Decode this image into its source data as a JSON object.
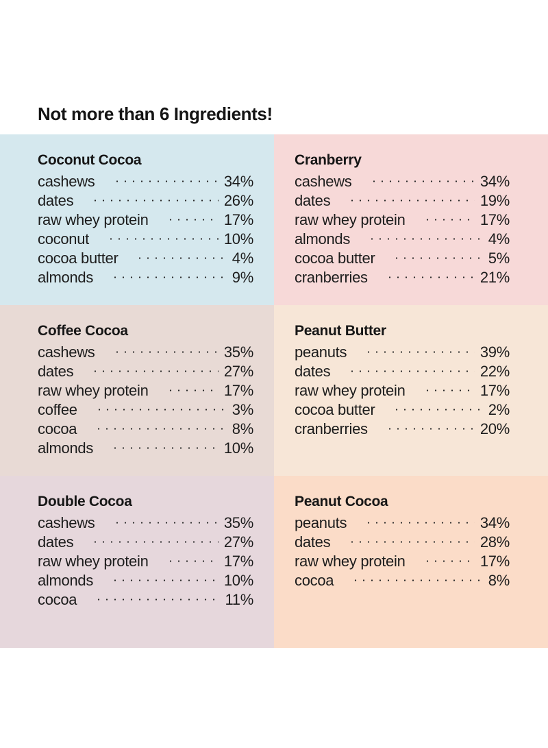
{
  "headline": "Not more than 6 Ingredients!",
  "panels": [
    {
      "title": "Coconut Cocoa",
      "color": "#d5e8ee",
      "items": [
        {
          "name": "cashews",
          "pct": "34%"
        },
        {
          "name": "dates",
          "pct": "26%"
        },
        {
          "name": "raw whey protein",
          "pct": "17%"
        },
        {
          "name": "coconut",
          "pct": "10%"
        },
        {
          "name": "cocoa butter",
          "pct": "4%"
        },
        {
          "name": "almonds",
          "pct": "9%"
        }
      ]
    },
    {
      "title": "Cranberry",
      "color": "#f7d9d8",
      "items": [
        {
          "name": "cashews",
          "pct": "34%"
        },
        {
          "name": "dates",
          "pct": "19%"
        },
        {
          "name": "raw whey protein",
          "pct": "17%"
        },
        {
          "name": "almonds",
          "pct": "4%"
        },
        {
          "name": "cocoa butter",
          "pct": "5%"
        },
        {
          "name": "cranberries",
          "pct": "21%"
        }
      ]
    },
    {
      "title": "Coffee Cocoa",
      "color": "#e8dad5",
      "items": [
        {
          "name": "cashews",
          "pct": "35%"
        },
        {
          "name": "dates",
          "pct": "27%"
        },
        {
          "name": "raw whey protein",
          "pct": "17%"
        },
        {
          "name": "coffee",
          "pct": "3%"
        },
        {
          "name": "cocoa",
          "pct": "8%"
        },
        {
          "name": "almonds",
          "pct": "10%"
        }
      ]
    },
    {
      "title": "Peanut Butter",
      "color": "#f7e6d7",
      "items": [
        {
          "name": "peanuts",
          "pct": "39%"
        },
        {
          "name": "dates",
          "pct": "22%"
        },
        {
          "name": "raw whey protein",
          "pct": "17%"
        },
        {
          "name": "cocoa butter",
          "pct": "2%"
        },
        {
          "name": "cranberries",
          "pct": "20%"
        }
      ]
    },
    {
      "title": "Double Cocoa",
      "color": "#e6d7dc",
      "items": [
        {
          "name": "cashews",
          "pct": "35%"
        },
        {
          "name": "dates",
          "pct": "27%"
        },
        {
          "name": "raw whey protein",
          "pct": "17%"
        },
        {
          "name": "almonds",
          "pct": "10%"
        },
        {
          "name": "cocoa",
          "pct": "11%"
        }
      ]
    },
    {
      "title": "Peanut Cocoa",
      "color": "#fbdcc8",
      "items": [
        {
          "name": "peanuts",
          "pct": "34%"
        },
        {
          "name": "dates",
          "pct": "28%"
        },
        {
          "name": "raw whey protein",
          "pct": "17%"
        },
        {
          "name": "cocoa",
          "pct": "8%"
        }
      ]
    }
  ]
}
